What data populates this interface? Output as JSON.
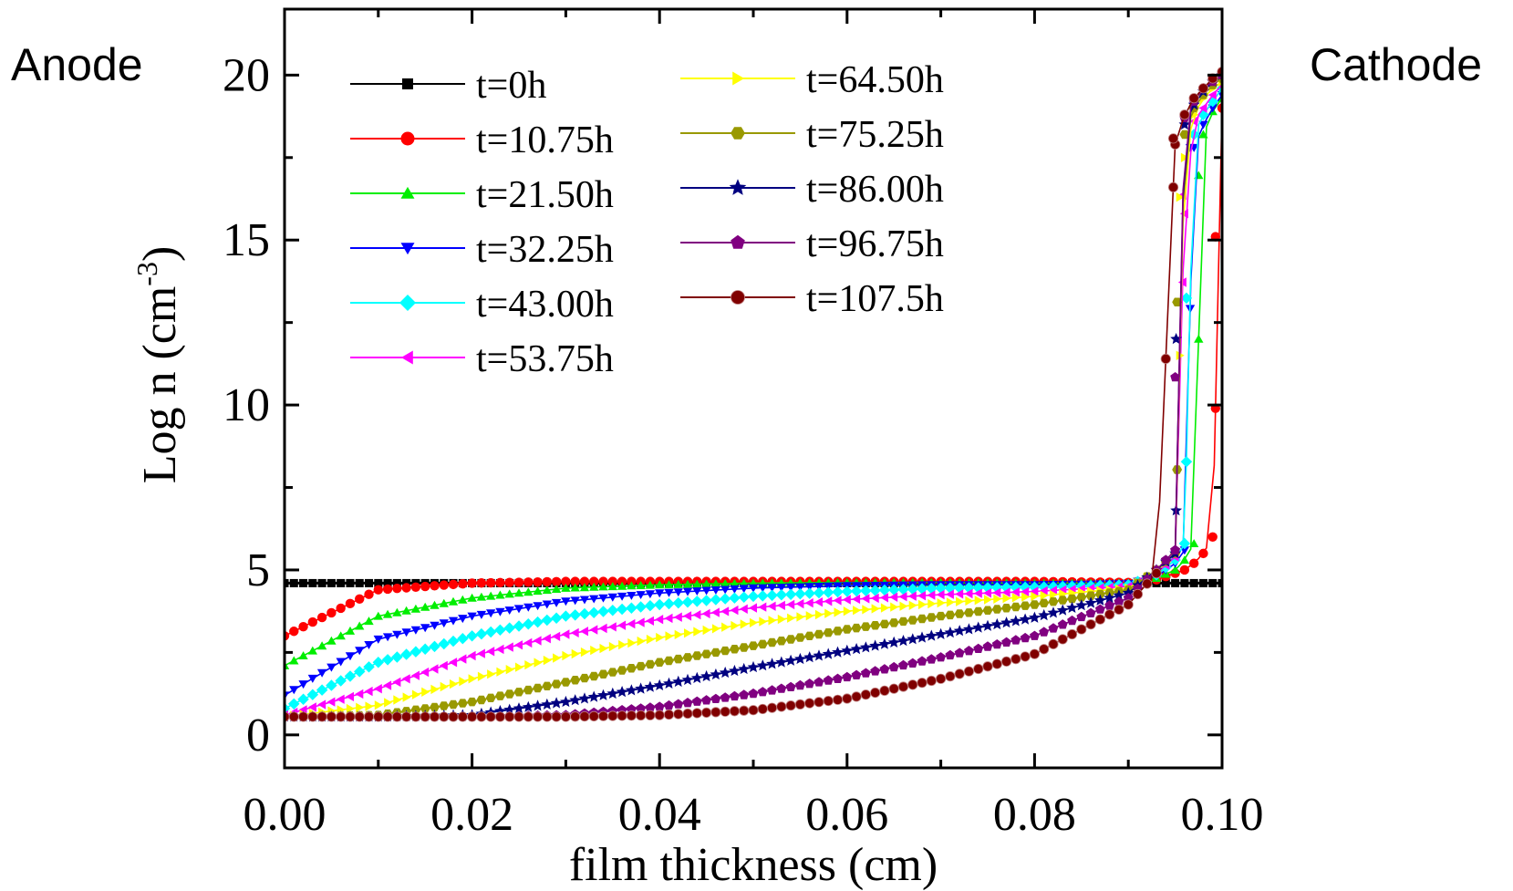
{
  "chart_data": {
    "type": "line",
    "title": "",
    "xlabel": "film thickness (cm)",
    "ylabel": "Log  n  (cm",
    "ylabel_sup": "-3",
    "ylabel_close": ")",
    "xlim": [
      0.0,
      0.1
    ],
    "ylim": [
      -1.0,
      22.0
    ],
    "xticks": [
      0.0,
      0.02,
      0.04,
      0.06,
      0.08,
      0.1
    ],
    "xtick_labels": [
      "0.00",
      "0.02",
      "0.04",
      "0.06",
      "0.08",
      "0.10"
    ],
    "yticks": [
      0,
      5,
      10,
      15,
      20
    ],
    "ytick_labels": [
      "0",
      "5",
      "10",
      "15",
      "20"
    ],
    "grid": false,
    "legend_position": "top-left, two columns",
    "annotations": {
      "left": "Anode",
      "right": "Cathode"
    },
    "x": [
      0.0,
      0.01,
      0.02,
      0.03,
      0.04,
      0.05,
      0.06,
      0.07,
      0.08,
      0.09,
      0.093,
      0.095,
      0.096,
      0.097,
      0.098,
      0.099,
      0.1
    ],
    "series": [
      {
        "name": "t=0h",
        "color": "#000000",
        "marker": "square",
        "switch_x": 0.1,
        "values": [
          4.6,
          4.6,
          4.6,
          4.6,
          4.6,
          4.6,
          4.6,
          4.6,
          4.6,
          4.6,
          4.6,
          4.6,
          4.6,
          4.6,
          4.6,
          4.6,
          4.6
        ]
      },
      {
        "name": "t=10.75h",
        "color": "#ff0000",
        "marker": "circle",
        "switch_x": 0.0993,
        "values": [
          3.0,
          4.4,
          4.6,
          4.65,
          4.65,
          4.65,
          4.65,
          4.65,
          4.65,
          4.62,
          4.7,
          4.9,
          5.0,
          5.2,
          5.5,
          6.0,
          19.0
        ]
      },
      {
        "name": "t=21.50h",
        "color": "#00ee00",
        "marker": "triangle-up",
        "switch_x": 0.0975,
        "values": [
          2.1,
          3.6,
          4.15,
          4.45,
          4.55,
          4.6,
          4.62,
          4.62,
          4.6,
          4.6,
          4.75,
          5.0,
          5.3,
          5.8,
          18.2,
          18.9,
          19.3
        ]
      },
      {
        "name": "t=32.25h",
        "color": "#0000ff",
        "marker": "triangle-down",
        "switch_x": 0.0966,
        "values": [
          1.2,
          2.9,
          3.6,
          4.05,
          4.3,
          4.45,
          4.52,
          4.55,
          4.55,
          4.58,
          4.8,
          5.2,
          5.6,
          17.8,
          18.5,
          19.0,
          19.4
        ]
      },
      {
        "name": "t=43.00h",
        "color": "#00ffff",
        "marker": "diamond",
        "switch_x": 0.0962,
        "values": [
          0.8,
          2.2,
          3.0,
          3.6,
          3.95,
          4.2,
          4.35,
          4.45,
          4.48,
          4.55,
          4.85,
          5.3,
          5.8,
          18.2,
          18.8,
          19.2,
          19.6
        ]
      },
      {
        "name": "t=53.75h",
        "color": "#ff00ff",
        "marker": "triangle-left",
        "switch_x": 0.0958,
        "values": [
          0.6,
          1.4,
          2.4,
          3.05,
          3.5,
          3.85,
          4.1,
          4.25,
          4.35,
          4.5,
          4.9,
          5.4,
          15.8,
          18.6,
          19.0,
          19.4,
          19.7
        ]
      },
      {
        "name": "t=64.50h",
        "color": "#ffff00",
        "marker": "triangle-right",
        "switch_x": 0.0955,
        "values": [
          0.55,
          0.9,
          1.7,
          2.4,
          2.95,
          3.4,
          3.75,
          4.0,
          4.2,
          4.45,
          4.95,
          5.5,
          17.5,
          18.8,
          19.3,
          19.6,
          19.8
        ]
      },
      {
        "name": "t=75.25h",
        "color": "#999900",
        "marker": "hexagon",
        "switch_x": 0.0952,
        "values": [
          0.55,
          0.6,
          1.0,
          1.6,
          2.2,
          2.7,
          3.2,
          3.6,
          3.95,
          4.4,
          5.0,
          5.5,
          18.2,
          19.0,
          19.4,
          19.7,
          19.9
        ]
      },
      {
        "name": "t=86.00h",
        "color": "#000080",
        "marker": "star",
        "switch_x": 0.0951,
        "values": [
          0.55,
          0.55,
          0.6,
          1.0,
          1.5,
          2.05,
          2.55,
          3.05,
          3.55,
          4.3,
          5.0,
          5.5,
          18.5,
          19.1,
          19.5,
          19.8,
          20.0
        ]
      },
      {
        "name": "t=96.75h",
        "color": "#800080",
        "marker": "pentagon",
        "switch_x": 0.095,
        "values": [
          0.55,
          0.55,
          0.55,
          0.6,
          0.85,
          1.25,
          1.75,
          2.35,
          3.0,
          4.15,
          5.0,
          5.6,
          18.7,
          19.2,
          19.6,
          19.8,
          20.0
        ]
      },
      {
        "name": "t=107.5h",
        "color": "#800000",
        "marker": "ball",
        "switch_x": 0.0948,
        "values": [
          0.55,
          0.55,
          0.55,
          0.55,
          0.6,
          0.75,
          1.1,
          1.7,
          2.45,
          3.95,
          4.9,
          17.9,
          18.8,
          19.3,
          19.6,
          19.9,
          20.1
        ]
      }
    ]
  }
}
